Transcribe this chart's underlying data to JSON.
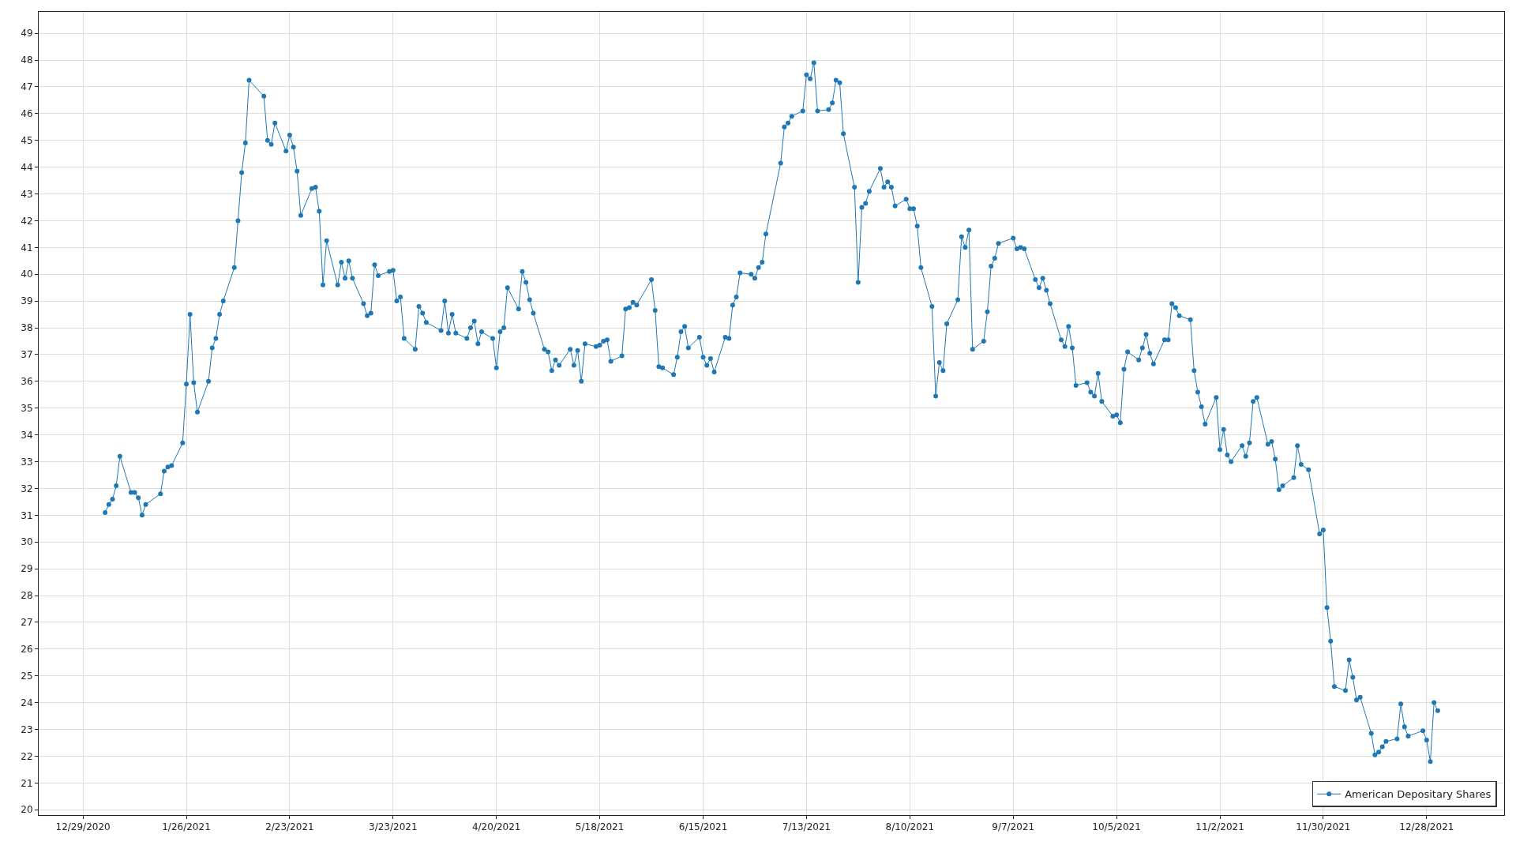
{
  "chart_data": {
    "type": "line",
    "legend": "bottom right",
    "grid": true,
    "marker": "circle",
    "line_style": "solid",
    "xlim": [
      "2020-12-17",
      "2022-01-18"
    ],
    "xticks": [
      {
        "value": "2020-12-29",
        "label": "12/29/2020"
      },
      {
        "value": "2021-01-26",
        "label": "1/26/2021"
      },
      {
        "value": "2021-02-23",
        "label": "2/23/2021"
      },
      {
        "value": "2021-03-23",
        "label": "3/23/2021"
      },
      {
        "value": "2021-04-20",
        "label": "4/20/2021"
      },
      {
        "value": "2021-05-18",
        "label": "5/18/2021"
      },
      {
        "value": "2021-06-15",
        "label": "6/15/2021"
      },
      {
        "value": "2021-07-13",
        "label": "7/13/2021"
      },
      {
        "value": "2021-08-10",
        "label": "8/10/2021"
      },
      {
        "value": "2021-09-07",
        "label": "9/7/2021"
      },
      {
        "value": "2021-10-05",
        "label": "10/5/2021"
      },
      {
        "value": "2021-11-02",
        "label": "11/2/2021"
      },
      {
        "value": "2021-11-30",
        "label": "11/30/2021"
      },
      {
        "value": "2021-12-28",
        "label": "12/28/2021"
      }
    ],
    "ylim": [
      19.8,
      49.8
    ],
    "yticks": [
      20,
      21,
      22,
      23,
      24,
      25,
      26,
      27,
      28,
      29,
      30,
      31,
      32,
      33,
      34,
      35,
      36,
      37,
      38,
      39,
      40,
      41,
      42,
      43,
      44,
      45,
      46,
      47,
      48,
      49
    ],
    "x": [
      "2021-01-04",
      "2021-01-05",
      "2021-01-06",
      "2021-01-07",
      "2021-01-08",
      "2021-01-11",
      "2021-01-12",
      "2021-01-13",
      "2021-01-14",
      "2021-01-15",
      "2021-01-19",
      "2021-01-20",
      "2021-01-21",
      "2021-01-22",
      "2021-01-25",
      "2021-01-26",
      "2021-01-27",
      "2021-01-28",
      "2021-01-29",
      "2021-02-01",
      "2021-02-02",
      "2021-02-03",
      "2021-02-04",
      "2021-02-05",
      "2021-02-08",
      "2021-02-09",
      "2021-02-10",
      "2021-02-11",
      "2021-02-12",
      "2021-02-16",
      "2021-02-17",
      "2021-02-18",
      "2021-02-19",
      "2021-02-22",
      "2021-02-23",
      "2021-02-24",
      "2021-02-25",
      "2021-02-26",
      "2021-03-01",
      "2021-03-02",
      "2021-03-03",
      "2021-03-04",
      "2021-03-05",
      "2021-03-08",
      "2021-03-09",
      "2021-03-10",
      "2021-03-11",
      "2021-03-12",
      "2021-03-15",
      "2021-03-16",
      "2021-03-17",
      "2021-03-18",
      "2021-03-19",
      "2021-03-22",
      "2021-03-23",
      "2021-03-24",
      "2021-03-25",
      "2021-03-26",
      "2021-03-29",
      "2021-03-30",
      "2021-03-31",
      "2021-04-01",
      "2021-04-05",
      "2021-04-06",
      "2021-04-07",
      "2021-04-08",
      "2021-04-09",
      "2021-04-12",
      "2021-04-13",
      "2021-04-14",
      "2021-04-15",
      "2021-04-16",
      "2021-04-19",
      "2021-04-20",
      "2021-04-21",
      "2021-04-22",
      "2021-04-23",
      "2021-04-26",
      "2021-04-27",
      "2021-04-28",
      "2021-04-29",
      "2021-04-30",
      "2021-05-03",
      "2021-05-04",
      "2021-05-05",
      "2021-05-06",
      "2021-05-07",
      "2021-05-10",
      "2021-05-11",
      "2021-05-12",
      "2021-05-13",
      "2021-05-14",
      "2021-05-17",
      "2021-05-18",
      "2021-05-19",
      "2021-05-20",
      "2021-05-21",
      "2021-05-24",
      "2021-05-25",
      "2021-05-26",
      "2021-05-27",
      "2021-05-28",
      "2021-06-01",
      "2021-06-02",
      "2021-06-03",
      "2021-06-04",
      "2021-06-07",
      "2021-06-08",
      "2021-06-09",
      "2021-06-10",
      "2021-06-11",
      "2021-06-14",
      "2021-06-15",
      "2021-06-16",
      "2021-06-17",
      "2021-06-18",
      "2021-06-21",
      "2021-06-22",
      "2021-06-23",
      "2021-06-24",
      "2021-06-25",
      "2021-06-28",
      "2021-06-29",
      "2021-06-30",
      "2021-07-01",
      "2021-07-02",
      "2021-07-06",
      "2021-07-07",
      "2021-07-08",
      "2021-07-09",
      "2021-07-12",
      "2021-07-13",
      "2021-07-14",
      "2021-07-15",
      "2021-07-16",
      "2021-07-19",
      "2021-07-20",
      "2021-07-21",
      "2021-07-22",
      "2021-07-23",
      "2021-07-26",
      "2021-07-27",
      "2021-07-28",
      "2021-07-29",
      "2021-07-30",
      "2021-08-02",
      "2021-08-03",
      "2021-08-04",
      "2021-08-05",
      "2021-08-06",
      "2021-08-09",
      "2021-08-10",
      "2021-08-11",
      "2021-08-12",
      "2021-08-13",
      "2021-08-16",
      "2021-08-17",
      "2021-08-18",
      "2021-08-19",
      "2021-08-20",
      "2021-08-23",
      "2021-08-24",
      "2021-08-25",
      "2021-08-26",
      "2021-08-27",
      "2021-08-30",
      "2021-08-31",
      "2021-09-01",
      "2021-09-02",
      "2021-09-03",
      "2021-09-07",
      "2021-09-08",
      "2021-09-09",
      "2021-09-10",
      "2021-09-13",
      "2021-09-14",
      "2021-09-15",
      "2021-09-16",
      "2021-09-17",
      "2021-09-20",
      "2021-09-21",
      "2021-09-22",
      "2021-09-23",
      "2021-09-24",
      "2021-09-27",
      "2021-09-28",
      "2021-09-29",
      "2021-09-30",
      "2021-10-01",
      "2021-10-04",
      "2021-10-05",
      "2021-10-06",
      "2021-10-07",
      "2021-10-08",
      "2021-10-11",
      "2021-10-12",
      "2021-10-13",
      "2021-10-14",
      "2021-10-15",
      "2021-10-18",
      "2021-10-19",
      "2021-10-20",
      "2021-10-21",
      "2021-10-22",
      "2021-10-25",
      "2021-10-26",
      "2021-10-27",
      "2021-10-28",
      "2021-10-29",
      "2021-11-01",
      "2021-11-02",
      "2021-11-03",
      "2021-11-04",
      "2021-11-05",
      "2021-11-08",
      "2021-11-09",
      "2021-11-10",
      "2021-11-11",
      "2021-11-12",
      "2021-11-15",
      "2021-11-16",
      "2021-11-17",
      "2021-11-18",
      "2021-11-19",
      "2021-11-22",
      "2021-11-23",
      "2021-11-24",
      "2021-11-26",
      "2021-11-29",
      "2021-11-30",
      "2021-12-01",
      "2021-12-02",
      "2021-12-03",
      "2021-12-06",
      "2021-12-07",
      "2021-12-08",
      "2021-12-09",
      "2021-12-10",
      "2021-12-13",
      "2021-12-14",
      "2021-12-15",
      "2021-12-16",
      "2021-12-17",
      "2021-12-20",
      "2021-12-21",
      "2021-12-22",
      "2021-12-23",
      "2021-12-27",
      "2021-12-28",
      "2021-12-29",
      "2021-12-30",
      "2021-12-31"
    ],
    "series": [
      {
        "name": "American Depositary Shares",
        "color": "#1f77b4",
        "values": [
          31.1,
          31.4,
          31.6,
          32.1,
          33.2,
          31.85,
          31.85,
          31.65,
          31.0,
          31.4,
          31.8,
          32.65,
          32.8,
          32.85,
          33.7,
          35.9,
          38.5,
          35.95,
          34.85,
          36.0,
          37.25,
          37.6,
          38.5,
          39.0,
          40.25,
          42.0,
          43.8,
          44.9,
          47.25,
          46.65,
          45.0,
          44.85,
          45.65,
          44.6,
          45.2,
          44.75,
          43.85,
          42.2,
          43.2,
          43.25,
          42.35,
          39.6,
          41.25,
          39.6,
          40.45,
          39.85,
          40.5,
          39.85,
          38.9,
          38.45,
          38.55,
          40.35,
          39.95,
          40.1,
          40.15,
          39.0,
          39.15,
          37.6,
          37.2,
          38.8,
          38.55,
          38.2,
          37.9,
          39.0,
          37.8,
          38.5,
          37.8,
          37.6,
          38.0,
          38.25,
          37.4,
          37.85,
          37.6,
          36.5,
          37.85,
          38.0,
          39.5,
          38.7,
          40.1,
          39.7,
          39.05,
          38.55,
          37.2,
          37.1,
          36.4,
          36.8,
          36.6,
          37.2,
          36.6,
          37.15,
          36.0,
          37.4,
          37.3,
          37.35,
          37.5,
          37.55,
          36.75,
          36.95,
          38.7,
          38.75,
          38.95,
          38.85,
          39.8,
          38.65,
          36.55,
          36.5,
          36.25,
          36.9,
          37.85,
          38.05,
          37.25,
          37.65,
          36.9,
          36.6,
          36.85,
          36.35,
          37.65,
          37.6,
          38.85,
          39.15,
          40.05,
          40.0,
          39.85,
          40.25,
          40.45,
          41.5,
          44.15,
          45.5,
          45.65,
          45.9,
          46.1,
          47.45,
          47.3,
          47.9,
          46.1,
          46.15,
          46.4,
          47.25,
          47.15,
          45.25,
          43.25,
          39.7,
          42.5,
          42.65,
          43.1,
          43.95,
          43.25,
          43.45,
          43.25,
          42.55,
          42.8,
          42.45,
          42.45,
          41.8,
          40.25,
          38.8,
          35.45,
          36.7,
          36.4,
          38.15,
          39.05,
          41.4,
          41.0,
          41.65,
          37.2,
          37.5,
          38.6,
          40.3,
          40.6,
          41.15,
          41.35,
          40.95,
          41.0,
          40.95,
          39.8,
          39.5,
          39.85,
          39.4,
          38.9,
          37.55,
          37.3,
          38.05,
          37.25,
          35.85,
          35.95,
          35.6,
          35.45,
          36.3,
          35.25,
          34.7,
          34.75,
          34.45,
          36.45,
          37.1,
          36.8,
          37.25,
          37.75,
          37.05,
          36.65,
          37.55,
          37.55,
          38.9,
          38.75,
          38.45,
          38.3,
          36.4,
          35.6,
          35.05,
          34.4,
          35.4,
          33.45,
          34.2,
          33.25,
          33.0,
          33.6,
          33.2,
          33.7,
          35.25,
          35.4,
          33.65,
          33.75,
          33.1,
          31.95,
          32.1,
          32.4,
          33.6,
          32.9,
          32.7,
          30.3,
          30.45,
          27.55,
          26.3,
          24.6,
          24.45,
          25.6,
          24.95,
          24.1,
          24.2,
          22.85,
          22.05,
          22.15,
          22.35,
          22.55,
          22.65,
          23.95,
          23.1,
          22.75,
          22.95,
          22.6,
          21.8,
          24.0,
          23.7
        ]
      }
    ]
  }
}
